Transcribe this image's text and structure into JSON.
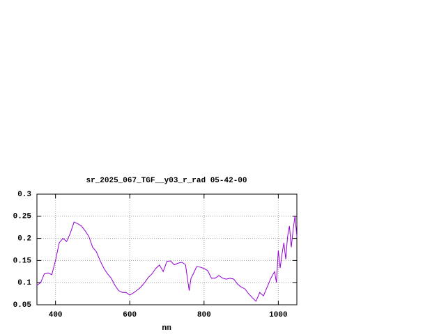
{
  "chart_data": {
    "type": "line",
    "title": "sr_2025_067_TGF__y03_r_rad 05-42-00",
    "x_label": "nm",
    "x": [
      350,
      360,
      370,
      380,
      390,
      400,
      410,
      420,
      430,
      440,
      450,
      460,
      470,
      480,
      490,
      500,
      510,
      520,
      530,
      540,
      550,
      560,
      570,
      580,
      590,
      600,
      610,
      620,
      630,
      640,
      650,
      660,
      670,
      680,
      690,
      700,
      710,
      720,
      730,
      740,
      750,
      760,
      765,
      770,
      780,
      790,
      800,
      810,
      820,
      830,
      840,
      850,
      860,
      870,
      880,
      890,
      900,
      910,
      920,
      930,
      940,
      950,
      960,
      970,
      980,
      990,
      995,
      1000,
      1005,
      1010,
      1015,
      1020,
      1025,
      1030,
      1035,
      1040,
      1045,
      1050
    ],
    "series": [
      {
        "name": "sr_2025_067_TGF__y03_r_rad",
        "color": "#9400d3",
        "values": [
          0.094,
          0.1,
          0.12,
          0.122,
          0.118,
          0.15,
          0.19,
          0.2,
          0.193,
          0.212,
          0.237,
          0.233,
          0.228,
          0.217,
          0.204,
          0.18,
          0.17,
          0.15,
          0.133,
          0.12,
          0.11,
          0.094,
          0.082,
          0.078,
          0.078,
          0.072,
          0.077,
          0.083,
          0.09,
          0.1,
          0.112,
          0.12,
          0.132,
          0.14,
          0.125,
          0.148,
          0.149,
          0.14,
          0.144,
          0.146,
          0.141,
          0.082,
          0.11,
          0.118,
          0.136,
          0.135,
          0.132,
          0.127,
          0.11,
          0.11,
          0.116,
          0.11,
          0.108,
          0.11,
          0.108,
          0.097,
          0.09,
          0.086,
          0.075,
          0.066,
          0.058,
          0.078,
          0.07,
          0.09,
          0.11,
          0.125,
          0.1,
          0.173,
          0.133,
          0.165,
          0.19,
          0.153,
          0.204,
          0.228,
          0.18,
          0.22,
          0.251,
          0.204
        ]
      }
    ],
    "xlim": [
      350,
      1050
    ],
    "xticks": [
      400,
      600,
      800,
      1000
    ],
    "ylim": [
      0.05,
      0.3
    ],
    "yticks": [
      0.05,
      0.1,
      0.15,
      0.2,
      0.25,
      0.3
    ],
    "grid": true
  }
}
